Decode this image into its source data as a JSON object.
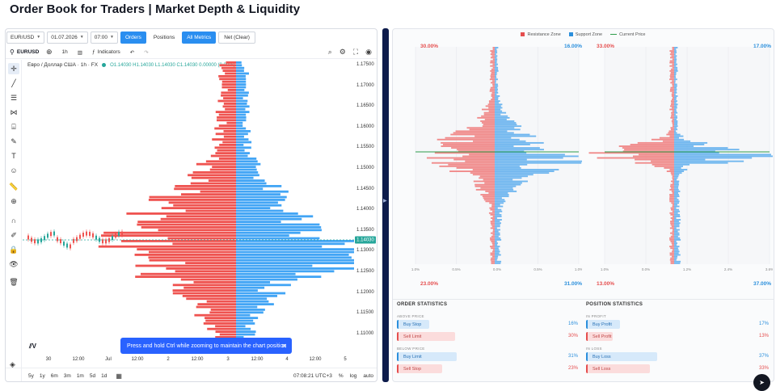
{
  "page": {
    "title": "Order Book for Traders | Market Depth & Liquidity"
  },
  "toolbar": {
    "symbol": "EUR/USD",
    "date": "01.07.2026",
    "time": "07:00",
    "buttons": [
      {
        "label": "Orders",
        "active": true
      },
      {
        "label": "Positions",
        "active": false
      },
      {
        "label": "All Metrics",
        "active": true
      },
      {
        "label": "Net (Clear)",
        "active": false
      }
    ]
  },
  "chart": {
    "symbol_code": "EURUSD",
    "interval": "1h",
    "indicators_label": "Indicators",
    "description": "Евро / Доллар США · 1h · FX",
    "ohlc": "O1.14030 H1.14030 L1.14030 C1.14030 0.00000 (0.00%)",
    "current_price": "1.14030",
    "price_ticks": [
      "1.17500",
      "1.17000",
      "1.16500",
      "1.16000",
      "1.15500",
      "1.15000",
      "1.14500",
      "1.14000",
      "1.13500",
      "1.13000",
      "1.12500",
      "1.12000",
      "1.11500",
      "1.11000"
    ],
    "time_ticks": [
      "30",
      "12:00",
      "Jul",
      "12:00",
      "2",
      "12:00",
      "3",
      "12:00",
      "4",
      "12:00",
      "5"
    ],
    "toast": "Press and hold Ctrl while zooming to maintain the chart position",
    "ranges": [
      "5y",
      "1y",
      "6m",
      "3m",
      "1m",
      "5d",
      "1d"
    ],
    "clock": "07:08:21 UTC+3",
    "bottom_right": [
      "%",
      "log",
      "auto"
    ],
    "colors": {
      "sell": "#ef5350",
      "buy": "#42a5f5",
      "price": "#26a69a"
    }
  },
  "depth": {
    "legend": [
      {
        "label": "Resistance Zone",
        "color": "#e54e4e"
      },
      {
        "label": "Support Zone",
        "color": "#2b8fdc"
      },
      {
        "label": "Current Price",
        "color": "#2e9d4a"
      }
    ],
    "orders": {
      "top_left": "30.00%",
      "top_right": "16.00%",
      "bottom_left": "23.00%",
      "bottom_right": "31.00%",
      "x_ticks": [
        "1.0%",
        "0.5%",
        "0.0%",
        "0.5%",
        "1.0%"
      ]
    },
    "positions": {
      "top_left": "33.00%",
      "top_right": "17.00%",
      "bottom_left": "13.00%",
      "bottom_right": "37.00%",
      "x_ticks": [
        "1.0%",
        "0.0%",
        "1.2%",
        "2.4%",
        "3.6%"
      ]
    }
  },
  "order_stats": {
    "title": "ORDER STATISTICS",
    "groups": [
      {
        "label": "ABOVE PRICE",
        "rows": [
          {
            "label": "Buy Stop",
            "value": "16%",
            "side": "blue",
            "pct": 0.16
          },
          {
            "label": "Sell Limit",
            "value": "30%",
            "side": "red",
            "pct": 0.3
          }
        ]
      },
      {
        "label": "BELOW PRICE",
        "rows": [
          {
            "label": "Buy Limit",
            "value": "31%",
            "side": "blue",
            "pct": 0.31
          },
          {
            "label": "Sell Stop",
            "value": "23%",
            "side": "red",
            "pct": 0.23
          }
        ]
      }
    ]
  },
  "position_stats": {
    "title": "POSITION STATISTICS",
    "groups": [
      {
        "label": "IN PROFIT",
        "rows": [
          {
            "label": "Buy Profit",
            "value": "17%",
            "side": "blue",
            "pct": 0.17
          },
          {
            "label": "Sell Profit",
            "value": "13%",
            "side": "red",
            "pct": 0.13
          }
        ]
      },
      {
        "label": "IN LOSS",
        "rows": [
          {
            "label": "Buy Loss",
            "value": "37%",
            "side": "blue",
            "pct": 0.37
          },
          {
            "label": "Sell Loss",
            "value": "33%",
            "side": "red",
            "pct": 0.33
          }
        ]
      }
    ]
  }
}
